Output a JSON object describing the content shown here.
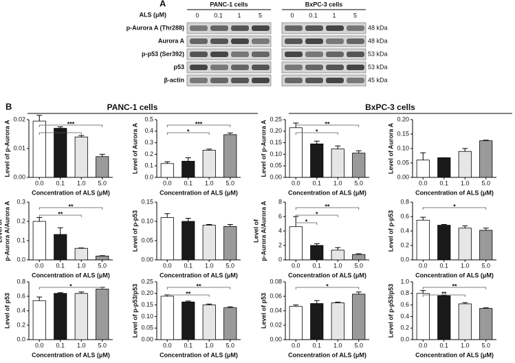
{
  "blot": {
    "label": "A",
    "dose_label": "ALS (μM)",
    "groups": [
      {
        "name": "PANC-1 cells",
        "lanes": [
          "0",
          "0.1",
          "1",
          "5"
        ]
      },
      {
        "name": "BxPC-3 cells",
        "lanes": [
          "0",
          "0.1",
          "1",
          "5"
        ]
      }
    ],
    "rows": [
      {
        "protein": "p-Aurora A (Thr288)",
        "kda": "48 kDa"
      },
      {
        "protein": "Aurora A",
        "kda": "48 kDa"
      },
      {
        "protein": "p-p53 (Ser392)",
        "kda": "53 kDa"
      },
      {
        "protein": "p53",
        "kda": "53 kDa"
      },
      {
        "protein": "β-actin",
        "kda": "45 kDa"
      }
    ]
  },
  "panel_b": {
    "label": "B",
    "headers": [
      "PANC-1 cells",
      "BxPC-3 cells"
    ]
  },
  "chart_data": [
    {
      "type": "bar",
      "ylabel": [
        "Level of p-Aurora A"
      ],
      "xlabel": "Concentration of ALS (μM)",
      "categories": [
        "0.0",
        "0.1",
        "1.0",
        "5.0"
      ],
      "values": [
        0.0195,
        0.017,
        0.014,
        0.0072
      ],
      "errors": [
        0.002,
        0.0005,
        0.0005,
        0.0008
      ],
      "colors": [
        "#ffffff",
        "#1a1a1a",
        "#e6e6e6",
        "#9a9a9a"
      ],
      "ylim": [
        0,
        0.02
      ],
      "yticks": [
        {
          "value": 0,
          "label": "0.00"
        },
        {
          "value": 0.01,
          "label": "0.01"
        },
        {
          "value": 0.02,
          "label": "0.02"
        }
      ],
      "significance": [
        {
          "label": "*",
          "categories": [
            "0.0",
            "1.0"
          ]
        },
        {
          "label": "***",
          "categories": [
            "0.0",
            "5.0"
          ]
        }
      ]
    },
    {
      "type": "bar",
      "ylabel": [
        "Level of Aurora A"
      ],
      "xlabel": "Concentration of ALS (μM)",
      "categories": [
        "0.0",
        "0.1",
        "1.0",
        "5.0"
      ],
      "values": [
        0.12,
        0.14,
        0.235,
        0.37
      ],
      "errors": [
        0.015,
        0.03,
        0.01,
        0.015
      ],
      "colors": [
        "#ffffff",
        "#1a1a1a",
        "#e6e6e6",
        "#9a9a9a"
      ],
      "ylim": [
        0,
        0.5
      ],
      "yticks": [
        {
          "value": 0,
          "label": "0.0"
        },
        0.1,
        0.2,
        0.3,
        0.4,
        0.5
      ],
      "significance": [
        {
          "label": "*",
          "categories": [
            "0.0",
            "1.0"
          ]
        },
        {
          "label": "***",
          "categories": [
            "0.0",
            "5.0"
          ]
        }
      ]
    },
    {
      "type": "bar",
      "ylabel": [
        "Level of p-Aurora A"
      ],
      "xlabel": "Concentration of ALS (μM)",
      "categories": [
        "0.0",
        "0.1",
        "1.0",
        "5.0"
      ],
      "values": [
        0.215,
        0.145,
        0.123,
        0.105
      ],
      "errors": [
        0.02,
        0.012,
        0.013,
        0.01
      ],
      "colors": [
        "#ffffff",
        "#1a1a1a",
        "#e6e6e6",
        "#9a9a9a"
      ],
      "ylim": [
        0,
        0.25
      ],
      "yticks": [
        {
          "value": 0,
          "label": "0.00"
        },
        0.05,
        {
          "value": 0.1,
          "label": "0.10"
        },
        0.15,
        {
          "value": 0.2,
          "label": "0.20"
        },
        0.25
      ],
      "significance": [
        {
          "label": "*",
          "categories": [
            "0.0",
            "1.0"
          ]
        },
        {
          "label": "**",
          "categories": [
            "0.0",
            "5.0"
          ]
        }
      ]
    },
    {
      "type": "bar",
      "ylabel": [
        "Level of Aurora A"
      ],
      "xlabel": "Concentration of ALS (μM)",
      "categories": [
        "0.0",
        "0.1",
        "1.0",
        "5.0"
      ],
      "values": [
        0.06,
        0.068,
        0.09,
        0.127
      ],
      "errors": [
        0.025,
        0,
        0.01,
        0.002
      ],
      "colors": [
        "#ffffff",
        "#1a1a1a",
        "#e6e6e6",
        "#9a9a9a"
      ],
      "ylim": [
        0,
        0.2
      ],
      "yticks": [
        {
          "value": 0,
          "label": "0.00"
        },
        0.05,
        {
          "value": 0.1,
          "label": "0.10"
        },
        0.15,
        {
          "value": 0.2,
          "label": "0.20"
        }
      ],
      "significance": []
    },
    {
      "type": "bar",
      "ylabel": [
        "Level of",
        "p-Aurora A/Aurora A"
      ],
      "xlabel": "Concentration of ALS (μM)",
      "categories": [
        "0.0",
        "0.1",
        "1.0",
        "5.0"
      ],
      "values": [
        0.2,
        0.132,
        0.06,
        0.02
      ],
      "errors": [
        0.02,
        0.035,
        0.002,
        0.002
      ],
      "colors": [
        "#ffffff",
        "#1a1a1a",
        "#e6e6e6",
        "#9a9a9a"
      ],
      "ylim": [
        0,
        0.3
      ],
      "yticks": [
        {
          "value": 0,
          "label": "0.0"
        },
        0.1,
        0.2,
        0.3
      ],
      "significance": [
        {
          "label": "**",
          "categories": [
            "0.0",
            "1.0"
          ]
        },
        {
          "label": "**",
          "categories": [
            "0.0",
            "5.0"
          ]
        }
      ]
    },
    {
      "type": "bar",
      "ylabel": [
        "Level of p-p53"
      ],
      "xlabel": "Concentration of ALS (μM)",
      "categories": [
        "0.0",
        "0.1",
        "1.0",
        "5.0"
      ],
      "values": [
        0.11,
        0.1,
        0.09,
        0.087
      ],
      "errors": [
        0.01,
        0.008,
        0.002,
        0.005
      ],
      "colors": [
        "#ffffff",
        "#1a1a1a",
        "#e6e6e6",
        "#9a9a9a"
      ],
      "ylim": [
        0,
        0.15
      ],
      "yticks": [
        {
          "value": 0,
          "label": "0.00"
        },
        0.05,
        {
          "value": 0.1,
          "label": "0.10"
        },
        0.15
      ],
      "significance": []
    },
    {
      "type": "bar",
      "ylabel": [
        "Level of",
        "p-Aurora A/Aurora A"
      ],
      "xlabel": "Concentration of ALS (μM)",
      "categories": [
        "0.0",
        "0.1",
        "1.0",
        "5.0"
      ],
      "values": [
        4.6,
        2.0,
        1.35,
        0.75
      ],
      "errors": [
        1.4,
        0.25,
        0.35,
        0.1
      ],
      "colors": [
        "#ffffff",
        "#1a1a1a",
        "#e6e6e6",
        "#9a9a9a"
      ],
      "ylim": [
        0,
        8
      ],
      "yticks": [
        0,
        2,
        4,
        6,
        8
      ],
      "significance": [
        {
          "label": "*",
          "categories": [
            "0.0",
            "0.1"
          ]
        },
        {
          "label": "*",
          "categories": [
            "0.0",
            "1.0"
          ]
        },
        {
          "label": "**",
          "categories": [
            "0.0",
            "5.0"
          ]
        }
      ]
    },
    {
      "type": "bar",
      "ylabel": [
        "Level of p-p53"
      ],
      "xlabel": "Concentration of ALS (μM)",
      "categories": [
        "0.0",
        "0.1",
        "1.0",
        "5.0"
      ],
      "values": [
        0.55,
        0.48,
        0.44,
        0.41
      ],
      "errors": [
        0.04,
        0.01,
        0.03,
        0.03
      ],
      "colors": [
        "#ffffff",
        "#1a1a1a",
        "#e6e6e6",
        "#9a9a9a"
      ],
      "ylim": [
        0,
        0.8
      ],
      "yticks": [
        {
          "value": 0,
          "label": "0.0"
        },
        0.2,
        0.4,
        0.6,
        0.8
      ],
      "significance": [
        {
          "label": "*",
          "categories": [
            "0.0",
            "5.0"
          ]
        }
      ]
    },
    {
      "type": "bar",
      "ylabel": [
        "Level of p53"
      ],
      "xlabel": "Concentration of ALS (μM)",
      "categories": [
        "0.0",
        "0.1",
        "1.0",
        "5.0"
      ],
      "values": [
        0.54,
        0.64,
        0.64,
        0.7
      ],
      "errors": [
        0.05,
        0.01,
        0.02,
        0.025
      ],
      "colors": [
        "#ffffff",
        "#1a1a1a",
        "#e6e6e6",
        "#9a9a9a"
      ],
      "ylim": [
        0,
        0.8
      ],
      "yticks": [
        {
          "value": 0,
          "label": "0.0"
        },
        0.2,
        0.4,
        0.6,
        0.8
      ],
      "significance": [
        {
          "label": "*",
          "categories": [
            "0.0",
            "5.0"
          ]
        }
      ]
    },
    {
      "type": "bar",
      "ylabel": [
        "Level of p-p53/p53"
      ],
      "xlabel": "Concentration of ALS (μM)",
      "categories": [
        "0.0",
        "0.1",
        "1.0",
        "5.0"
      ],
      "values": [
        0.188,
        0.163,
        0.15,
        0.138
      ],
      "errors": [
        0.006,
        0.004,
        0.004,
        0.004
      ],
      "colors": [
        "#ffffff",
        "#1a1a1a",
        "#e6e6e6",
        "#9a9a9a"
      ],
      "ylim": [
        0,
        0.25
      ],
      "yticks": [
        {
          "value": 0,
          "label": "0.00"
        },
        0.05,
        {
          "value": 0.1,
          "label": "0.10"
        },
        0.15,
        {
          "value": 0.2,
          "label": "0.20"
        },
        0.25
      ],
      "significance": [
        {
          "label": "**",
          "categories": [
            "0.0",
            "1.0"
          ]
        },
        {
          "label": "**",
          "categories": [
            "0.0",
            "5.0"
          ]
        }
      ]
    },
    {
      "type": "bar",
      "ylabel": [
        "Level of p53"
      ],
      "xlabel": "Concentration of ALS (μM)",
      "categories": [
        "0.0",
        "0.1",
        "1.0",
        "5.0"
      ],
      "values": [
        0.046,
        0.05,
        0.051,
        0.063
      ],
      "errors": [
        0.002,
        0.004,
        0.001,
        0.003
      ],
      "colors": [
        "#ffffff",
        "#1a1a1a",
        "#e6e6e6",
        "#9a9a9a"
      ],
      "ylim": [
        0,
        0.08
      ],
      "yticks": [
        {
          "value": 0,
          "label": "0.00"
        },
        0.02,
        0.04,
        0.06,
        0.08
      ],
      "significance": [
        {
          "label": "*",
          "categories": [
            "0.0",
            "5.0"
          ]
        }
      ]
    },
    {
      "type": "bar",
      "ylabel": [
        "Level of p-p53/p53"
      ],
      "xlabel": "Concentration of ALS (μM)",
      "categories": [
        "0.0",
        "0.1",
        "1.0",
        "5.0"
      ],
      "values": [
        0.8,
        0.76,
        0.62,
        0.54
      ],
      "errors": [
        0.05,
        0.01,
        0.02,
        0.01
      ],
      "colors": [
        "#ffffff",
        "#1a1a1a",
        "#e6e6e6",
        "#9a9a9a"
      ],
      "ylim": [
        0,
        1
      ],
      "yticks": [
        {
          "value": 0,
          "label": "0.0"
        },
        0.2,
        0.4,
        0.6,
        0.8,
        {
          "value": 1,
          "label": "1.0"
        }
      ],
      "significance": [
        {
          "label": "**",
          "categories": [
            "0.0",
            "1.0"
          ]
        },
        {
          "label": "**",
          "categories": [
            "0.0",
            "5.0"
          ]
        }
      ]
    }
  ]
}
